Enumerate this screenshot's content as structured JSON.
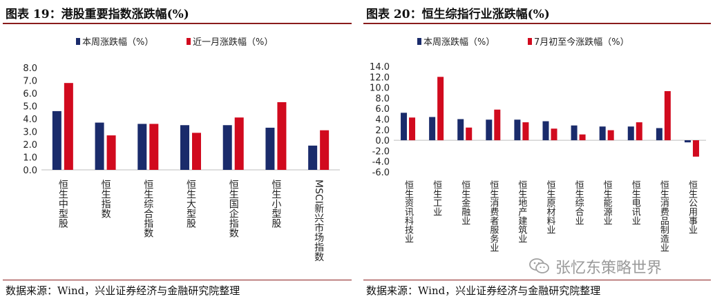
{
  "left": {
    "title": "图表 19：港股重要指数涨跌幅(%)",
    "source": "数据来源：Wind，兴业证券经济与金融研究院整理",
    "chart_data": {
      "type": "bar",
      "categories": [
        "恒生中型股",
        "恒生指数",
        "恒生综合指数",
        "恒生大型股",
        "恒生国企指数",
        "恒生小型股",
        "MSCI新兴市场指数"
      ],
      "series": [
        {
          "name": "本周涨跌幅（%）",
          "color": "#1a2b6b",
          "values": [
            4.6,
            3.7,
            3.6,
            3.5,
            3.5,
            3.3,
            1.9
          ]
        },
        {
          "name": "近一月涨跌幅（%）",
          "color": "#d10a1e",
          "values": [
            6.8,
            2.7,
            3.6,
            2.9,
            4.1,
            5.3,
            3.1
          ]
        }
      ],
      "yticks": [
        "8.0",
        "7.0",
        "6.0",
        "5.0",
        "4.0",
        "3.0",
        "2.0",
        "1.0",
        "0.0"
      ],
      "ylim": [
        0,
        8
      ],
      "legend": "top"
    }
  },
  "right": {
    "title": "图表 20：恒生综指行业涨跌幅(%)",
    "source": "数据来源：Wind，兴业证券经济与金融研究院整理",
    "chart_data": {
      "type": "bar",
      "categories": [
        "恒生资讯科技业",
        "恒生工业",
        "恒生金融业",
        "恒生消费者服务业",
        "恒生地产建筑业",
        "恒生原材料业",
        "恒生综合业",
        "恒生能源业",
        "恒生电讯业",
        "恒生消费品制造业",
        "恒生公用事业"
      ],
      "series": [
        {
          "name": "本周涨跌幅（%）",
          "color": "#1a2b6b",
          "values": [
            5.2,
            4.4,
            4.0,
            3.9,
            3.9,
            3.6,
            2.8,
            2.6,
            2.6,
            2.3,
            -0.4
          ]
        },
        {
          "name": "7月初至今涨跌幅（%）",
          "color": "#d10a1e",
          "values": [
            4.3,
            12.0,
            2.4,
            5.8,
            3.4,
            2.2,
            1.1,
            1.9,
            3.4,
            9.3,
            -3.1
          ]
        }
      ],
      "yticks": [
        "14.0",
        "12.0",
        "10.0",
        "8.0",
        "6.0",
        "4.0",
        "2.0",
        "0.0",
        "-2.0",
        "-4.0",
        "-6.0"
      ],
      "ylim": [
        -6,
        14
      ],
      "legend": "top"
    }
  },
  "watermark": {
    "text": "张忆东策略世界",
    "icon": "wechat-icon"
  }
}
